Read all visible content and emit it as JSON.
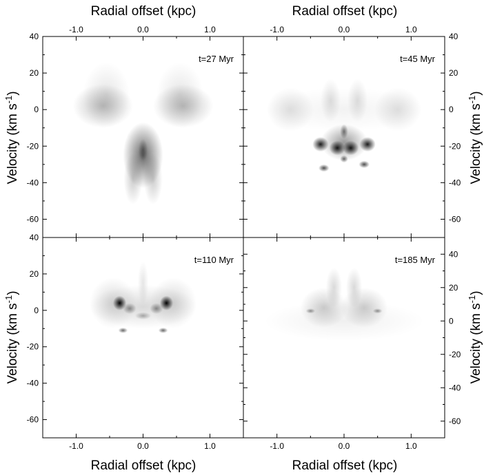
{
  "figure": {
    "x_axis_title": "Radial offset (kpc)",
    "y_axis_title": "Velocity (km s",
    "y_axis_title_sup": "-1",
    "y_axis_title_close": ")"
  },
  "chart_data": [
    {
      "type": "heatmap",
      "panel": "top-left",
      "annotation": "t=27 Myr",
      "xlabel": "Radial offset (kpc)",
      "ylabel": "Velocity (km s-1)",
      "xlim": [
        -1.5,
        1.5
      ],
      "ylim": [
        -70,
        40
      ],
      "x_ticks": [
        "-1.0",
        "0.0",
        "1.0"
      ],
      "y_ticks": [
        "40",
        "20",
        "0",
        "-20",
        "-40",
        "-60"
      ],
      "features": [
        {
          "x": -0.6,
          "y": 2,
          "sx": 0.45,
          "sy": 12,
          "intensity": 0.25
        },
        {
          "x": 0.6,
          "y": 2,
          "sx": 0.45,
          "sy": 12,
          "intensity": 0.25
        },
        {
          "x": -0.55,
          "y": 8,
          "sx": 0.35,
          "sy": 18,
          "intensity": 0.1
        },
        {
          "x": 0.55,
          "y": 8,
          "sx": 0.35,
          "sy": 18,
          "intensity": 0.1
        },
        {
          "x": 0.0,
          "y": -25,
          "sx": 0.3,
          "sy": 18,
          "intensity": 0.6
        },
        {
          "x": 0.0,
          "y": -22,
          "sx": 0.07,
          "sy": 6,
          "intensity": 0.35
        },
        {
          "x": -0.15,
          "y": -38,
          "sx": 0.14,
          "sy": 14,
          "intensity": 0.2
        },
        {
          "x": 0.15,
          "y": -38,
          "sx": 0.14,
          "sy": 14,
          "intensity": 0.2
        }
      ]
    },
    {
      "type": "heatmap",
      "panel": "top-right",
      "annotation": "t=45 Myr",
      "xlabel": "Radial offset (kpc)",
      "ylabel": "Velocity (km s-1)",
      "xlim": [
        -1.5,
        1.5
      ],
      "ylim": [
        -70,
        40
      ],
      "x_ticks": [
        "-1.0",
        "0.0",
        "1.0"
      ],
      "y_ticks": [
        "40",
        "20",
        "0",
        "-20",
        "-40",
        "-60"
      ],
      "features": [
        {
          "x": 0.0,
          "y": 0,
          "sx": 1.2,
          "sy": 12,
          "intensity": 0.05
        },
        {
          "x": -0.8,
          "y": 0,
          "sx": 0.35,
          "sy": 12,
          "intensity": 0.12
        },
        {
          "x": 0.8,
          "y": 0,
          "sx": 0.35,
          "sy": 12,
          "intensity": 0.12
        },
        {
          "x": -0.2,
          "y": 5,
          "sx": 0.15,
          "sy": 12,
          "intensity": 0.12
        },
        {
          "x": 0.2,
          "y": 5,
          "sx": 0.15,
          "sy": 12,
          "intensity": 0.12
        },
        {
          "x": 0.0,
          "y": -18,
          "sx": 0.35,
          "sy": 10,
          "intensity": 0.4
        },
        {
          "x": -0.35,
          "y": -19,
          "sx": 0.12,
          "sy": 4,
          "intensity": 0.9
        },
        {
          "x": 0.35,
          "y": -19,
          "sx": 0.12,
          "sy": 4,
          "intensity": 0.9
        },
        {
          "x": -0.1,
          "y": -21,
          "sx": 0.12,
          "sy": 4,
          "intensity": 0.9
        },
        {
          "x": 0.1,
          "y": -21,
          "sx": 0.12,
          "sy": 4,
          "intensity": 0.9
        },
        {
          "x": 0.0,
          "y": -12,
          "sx": 0.06,
          "sy": 4,
          "intensity": 0.5
        },
        {
          "x": -0.3,
          "y": -32,
          "sx": 0.08,
          "sy": 2,
          "intensity": 0.7
        },
        {
          "x": 0.3,
          "y": -30,
          "sx": 0.08,
          "sy": 2,
          "intensity": 0.7
        },
        {
          "x": 0.0,
          "y": -27,
          "sx": 0.06,
          "sy": 2,
          "intensity": 0.6
        }
      ]
    },
    {
      "type": "heatmap",
      "panel": "bottom-left",
      "annotation": "t=110 Myr",
      "xlabel": "Radial offset (kpc)",
      "ylabel": "Velocity (km s-1)",
      "xlim": [
        -1.5,
        1.5
      ],
      "ylim": [
        -70,
        40
      ],
      "x_ticks": [
        "-1.0",
        "0.0",
        "1.0"
      ],
      "y_ticks": [
        "40",
        "20",
        "0",
        "-20",
        "-40",
        "-60"
      ],
      "features": [
        {
          "x": 0.0,
          "y": 2,
          "sx": 0.8,
          "sy": 12,
          "intensity": 0.15
        },
        {
          "x": -0.45,
          "y": 4,
          "sx": 0.35,
          "sy": 14,
          "intensity": 0.15
        },
        {
          "x": 0.45,
          "y": 4,
          "sx": 0.35,
          "sy": 14,
          "intensity": 0.15
        },
        {
          "x": -0.35,
          "y": 4,
          "sx": 0.1,
          "sy": 4,
          "intensity": 1.0
        },
        {
          "x": 0.35,
          "y": 4,
          "sx": 0.1,
          "sy": 4,
          "intensity": 1.0
        },
        {
          "x": -0.2,
          "y": 1,
          "sx": 0.1,
          "sy": 3,
          "intensity": 0.4
        },
        {
          "x": 0.2,
          "y": 1,
          "sx": 0.1,
          "sy": 3,
          "intensity": 0.4
        },
        {
          "x": 0.0,
          "y": -3,
          "sx": 0.12,
          "sy": 2,
          "intensity": 0.3
        },
        {
          "x": -0.3,
          "y": -11,
          "sx": 0.07,
          "sy": 1.5,
          "intensity": 0.6
        },
        {
          "x": 0.3,
          "y": -11,
          "sx": 0.07,
          "sy": 1.5,
          "intensity": 0.6
        },
        {
          "x": 0.0,
          "y": 15,
          "sx": 0.08,
          "sy": 12,
          "intensity": 0.1
        }
      ]
    },
    {
      "type": "heatmap",
      "panel": "bottom-right",
      "annotation": "t=185 Myr",
      "xlabel": "Radial offset (kpc)",
      "ylabel": "Velocity (km s-1)",
      "xlim": [
        -1.5,
        1.5
      ],
      "ylim": [
        -70,
        50
      ],
      "x_ticks": [
        "-1.0",
        "0.0",
        "1.0"
      ],
      "y_ticks": [
        "40",
        "20",
        "0",
        "-20",
        "-40",
        "-60"
      ],
      "features": [
        {
          "x": 0.0,
          "y": 0,
          "sx": 1.2,
          "sy": 12,
          "intensity": 0.06
        },
        {
          "x": -0.3,
          "y": 8,
          "sx": 0.35,
          "sy": 12,
          "intensity": 0.2
        },
        {
          "x": 0.3,
          "y": 8,
          "sx": 0.35,
          "sy": 12,
          "intensity": 0.2
        },
        {
          "x": -0.15,
          "y": 20,
          "sx": 0.12,
          "sy": 12,
          "intensity": 0.15
        },
        {
          "x": 0.15,
          "y": 20,
          "sx": 0.12,
          "sy": 12,
          "intensity": 0.15
        },
        {
          "x": -0.5,
          "y": 6,
          "sx": 0.07,
          "sy": 1.5,
          "intensity": 0.4
        },
        {
          "x": 0.5,
          "y": 6,
          "sx": 0.07,
          "sy": 1.5,
          "intensity": 0.4
        }
      ]
    }
  ]
}
